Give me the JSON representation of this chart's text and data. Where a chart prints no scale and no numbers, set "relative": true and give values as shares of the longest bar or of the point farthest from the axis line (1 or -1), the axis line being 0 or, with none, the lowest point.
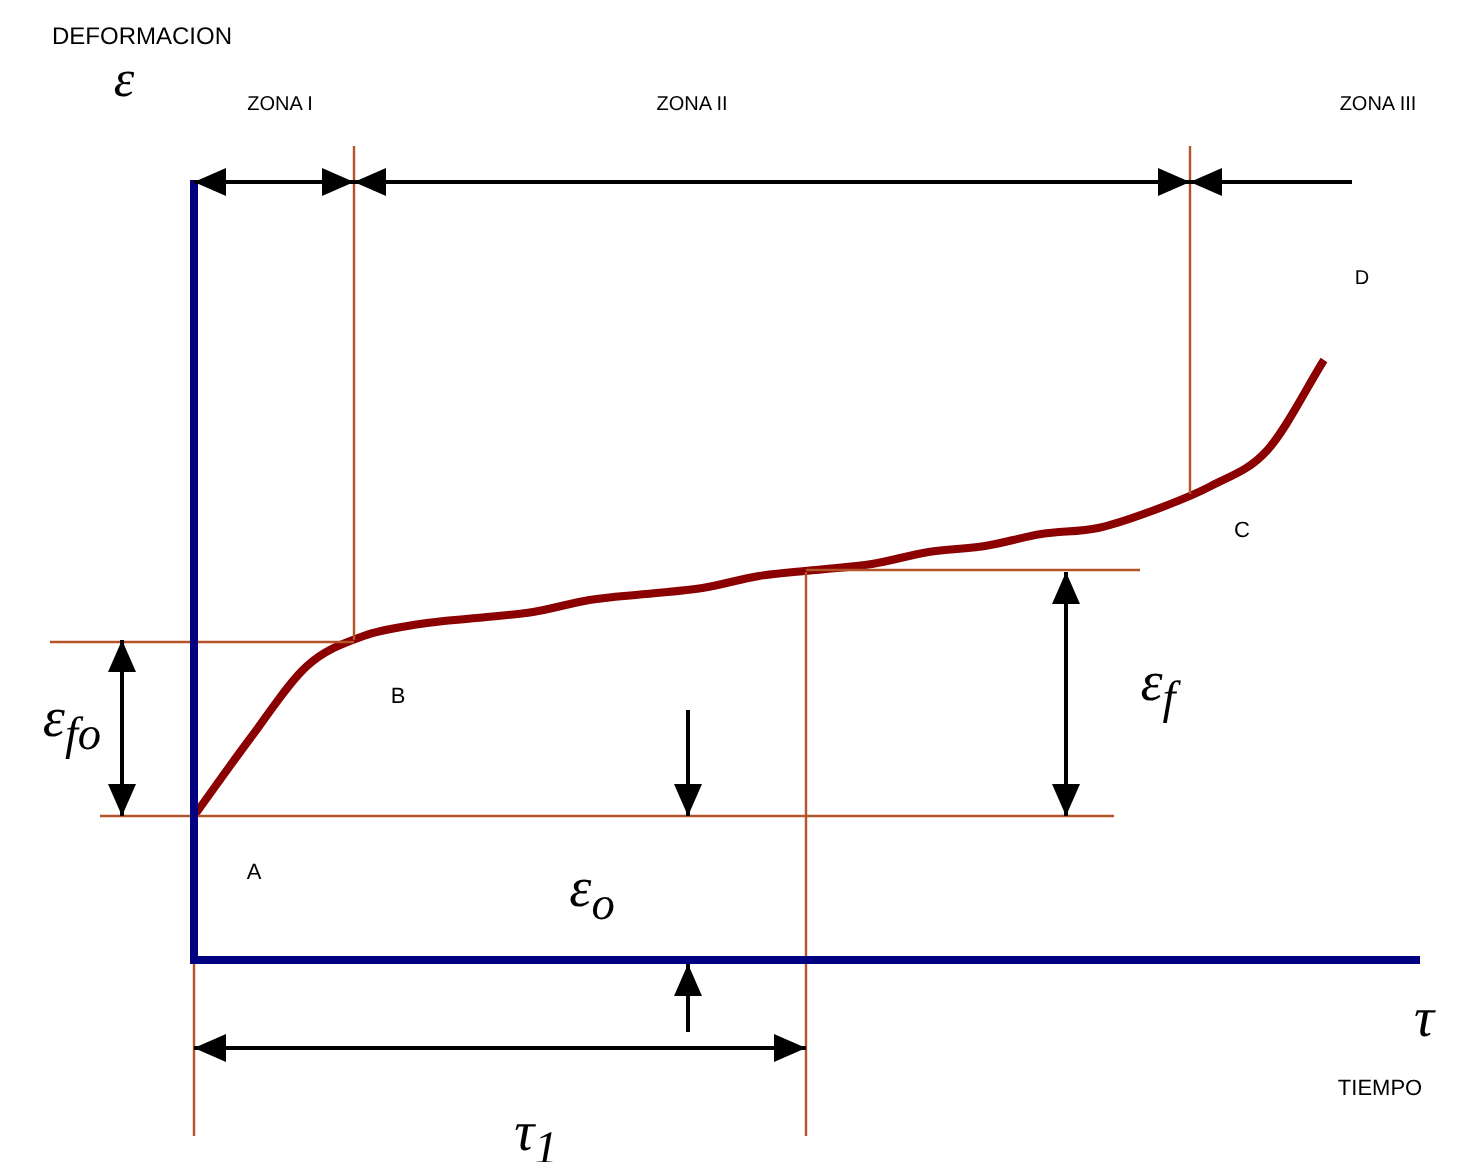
{
  "chart_data": {
    "type": "line",
    "relative": true,
    "categories": [
      null,
      null,
      null,
      null,
      null,
      null,
      null,
      null,
      null,
      null,
      null,
      null,
      null,
      null,
      null,
      null,
      null,
      null,
      null,
      null,
      null
    ],
    "series": [
      {
        "color": "#8b0000",
        "values": [
          0.24,
          0.37,
          0.49,
          0.54,
          0.56,
          0.57,
          0.58,
          0.6,
          0.61,
          0.62,
          0.64,
          0.65,
          0.66,
          0.68,
          0.69,
          0.71,
          0.72,
          0.75,
          0.79,
          0.85,
          1.0
        ]
      }
    ],
    "marker": "none",
    "legend": false,
    "ref_lines": [
      {
        "axis": "y",
        "value": 0.24,
        "color": "#b5532a"
      },
      {
        "axis": "y",
        "value": 0.53,
        "color": "#b5532a"
      },
      {
        "axis": "y",
        "value": 0.65,
        "color": "#b5532a"
      }
    ],
    "annotations": [
      "DEFORMACION",
      "TIEMPO",
      "ε",
      "τ",
      "ZONA I",
      "ZONA II",
      "ZONA III",
      "A",
      "B",
      "C",
      "D",
      "ε$_{fo}$",
      "ε$_{f}$",
      "ε$_{o}$",
      "τ$_{1}$"
    ]
  }
}
